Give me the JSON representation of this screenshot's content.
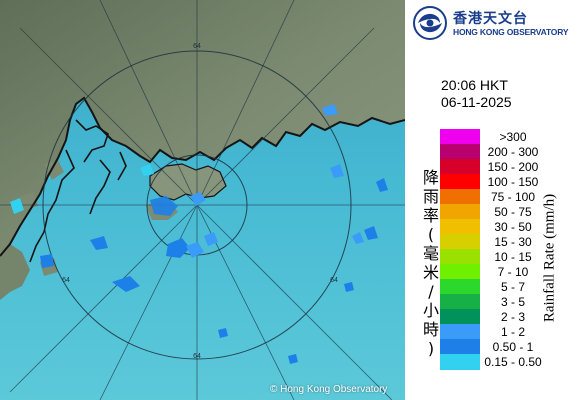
{
  "map": {
    "copyright": "© Hong Kong Observatory",
    "range_labels": {
      "north": "64",
      "west": "64",
      "southeast": "64",
      "south": "64"
    }
  },
  "panel": {
    "logo_icon": "hko-swirl-logo",
    "logo_zh": "香港天文台",
    "logo_en": "HONG KONG OBSERVATORY",
    "time": "20:06 HKT",
    "date": "06-11-2025",
    "legend_title_zh": "降雨率(毫米/小時)",
    "legend_title_en": "Rainfall Rate (mm/h)",
    "legend": [
      {
        "label": ">300",
        "color": "#ee00ee"
      },
      {
        "label": "200 - 300",
        "color": "#b8006e"
      },
      {
        "label": "150 - 200",
        "color": "#d6002a"
      },
      {
        "label": "100 - 150",
        "color": "#ff0000"
      },
      {
        "label": "75 - 100",
        "color": "#ef7000"
      },
      {
        "label": "50 - 75",
        "color": "#f0a500"
      },
      {
        "label": "30 - 50",
        "color": "#f0c000"
      },
      {
        "label": "15 - 30",
        "color": "#d8cf00"
      },
      {
        "label": "10 - 15",
        "color": "#9ae000"
      },
      {
        "label": "7 - 10",
        "color": "#6ef000"
      },
      {
        "label": "5 - 7",
        "color": "#2cd82c"
      },
      {
        "label": "3 - 5",
        "color": "#16b046"
      },
      {
        "label": "2 - 3",
        "color": "#00925a"
      },
      {
        "label": "1 - 2",
        "color": "#3a9cf8"
      },
      {
        "label": "0.50 - 1",
        "color": "#1d80e8"
      },
      {
        "label": "0.15 - 0.50",
        "color": "#33d1f0"
      }
    ]
  },
  "colors": {
    "sea": "#3fb3d0",
    "land": "#6f8066",
    "coastline": "#141414",
    "range_ring": "#1c3140",
    "brand": "#1a3e8c"
  }
}
